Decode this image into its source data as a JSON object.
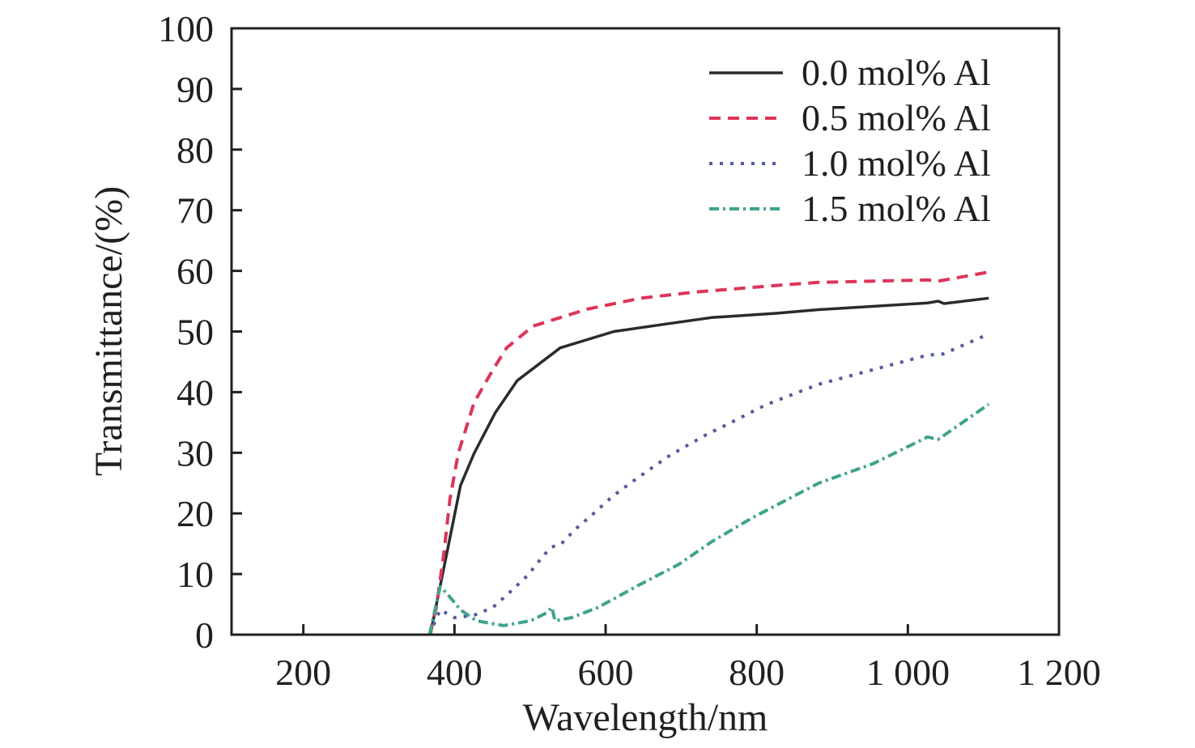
{
  "chart_data": {
    "type": "line",
    "title": "",
    "xlabel": "Wavelength/nm",
    "ylabel": "Transmittance/(%)",
    "xlim": [
      105,
      1200
    ],
    "ylim": [
      0,
      100
    ],
    "xticks": [
      200,
      400,
      600,
      800,
      1000,
      1200
    ],
    "xtick_labels": [
      "200",
      "400",
      "600",
      "800",
      "1 000",
      "1 200"
    ],
    "yticks": [
      0,
      10,
      20,
      30,
      40,
      50,
      60,
      70,
      80,
      90,
      100
    ],
    "ytick_labels": [
      "0",
      "10",
      "20",
      "30",
      "40",
      "50",
      "60",
      "70",
      "80",
      "90",
      "100"
    ],
    "grid": false,
    "legend_position": "top-right",
    "series": [
      {
        "name": "0.0 mol% Al",
        "style": "solid",
        "color": "#2b2a2c",
        "x": [
          368,
          390,
          408,
          426,
          454,
          483,
          540,
          611,
          683,
          740,
          826,
          882,
          1026,
          1040,
          1048,
          1107
        ],
        "y": [
          0,
          13.5,
          24.6,
          29.9,
          36.6,
          41.9,
          47.3,
          50.0,
          51.3,
          52.3,
          53.0,
          53.6,
          54.7,
          55.0,
          54.6,
          55.5
        ]
      },
      {
        "name": "0.5 mol% Al",
        "style": "dashed",
        "color": "#dc3558",
        "x": [
          367,
          376,
          386,
          394,
          405,
          426,
          451,
          469,
          504,
          540,
          576,
          647,
          718,
          826,
          882,
          1026,
          1040,
          1107
        ],
        "y": [
          0,
          4.5,
          13.5,
          22.3,
          29.9,
          38.3,
          43.7,
          47.3,
          50.9,
          52.3,
          53.7,
          55.5,
          56.5,
          57.6,
          58.1,
          58.5,
          58.3,
          59.8
        ]
      },
      {
        "name": "1.0 mol% Al",
        "style": "dotted",
        "color": "#565a9e",
        "x": [
          367,
          381,
          400,
          426,
          451,
          475,
          497,
          518,
          529,
          540,
          561,
          587,
          609,
          635,
          660,
          683,
          708,
          732,
          758,
          812,
          882,
          954,
          1026,
          1047,
          1107
        ],
        "y": [
          0,
          4.1,
          2.8,
          3.2,
          4.5,
          7.2,
          9.8,
          13.1,
          14.5,
          14.8,
          17.5,
          20.3,
          22.8,
          25.2,
          27.4,
          29.4,
          31.2,
          32.9,
          34.5,
          37.9,
          41.3,
          43.7,
          46.1,
          46.3,
          49.6
        ]
      },
      {
        "name": "1.5 mol% Al",
        "style": "dashdot",
        "color": "#3fa48c",
        "x": [
          367,
          381,
          390,
          408,
          429,
          465,
          501,
          522,
          529,
          533,
          555,
          590,
          643,
          697,
          740,
          793,
          882,
          954,
          1026,
          1040,
          1107
        ],
        "y": [
          0,
          7.9,
          6.8,
          4.1,
          2.3,
          1.5,
          2.3,
          3.6,
          4.5,
          2.3,
          2.8,
          4.5,
          8.1,
          11.6,
          15.3,
          19.2,
          25.0,
          28.2,
          32.6,
          32.2,
          38.0
        ]
      }
    ]
  }
}
